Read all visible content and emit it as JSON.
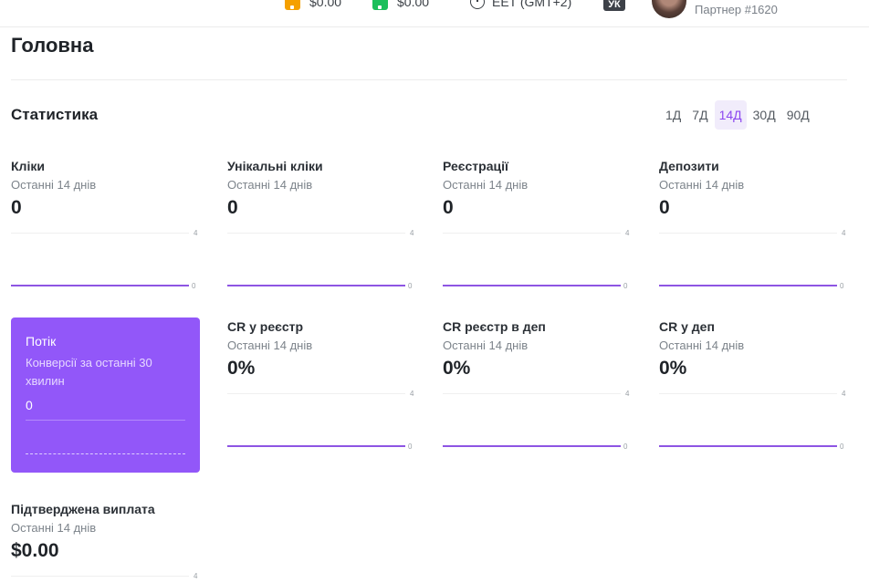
{
  "topbar": {
    "balance_1": "$0.00",
    "balance_2": "$0.00",
    "timezone": "EET (GMT+2)",
    "language": "УК",
    "partner": "Партнер #1620"
  },
  "page": {
    "title": "Головна"
  },
  "stats": {
    "title": "Статистика",
    "periods": [
      "1Д",
      "7Д",
      "14Д",
      "30Д",
      "90Д"
    ],
    "active_period": "14Д",
    "cards": [
      {
        "title": "Кліки",
        "subtitle": "Останні 14 днів",
        "value": "0",
        "axis_max": "4",
        "axis_min": "0"
      },
      {
        "title": "Унікальні кліки",
        "subtitle": "Останні 14 днів",
        "value": "0",
        "axis_max": "4",
        "axis_min": "0"
      },
      {
        "title": "Реєстрації",
        "subtitle": "Останні 14 днів",
        "value": "0",
        "axis_max": "4",
        "axis_min": "0"
      },
      {
        "title": "Депозити",
        "subtitle": "Останні 14 днів",
        "value": "0",
        "axis_max": "4",
        "axis_min": "0"
      },
      {
        "title": "CR у реєстр",
        "subtitle": "Останні 14 днів",
        "value": "0%",
        "axis_max": "4",
        "axis_min": "0"
      },
      {
        "title": "CR реєстр в деп",
        "subtitle": "Останні 14 днів",
        "value": "0%",
        "axis_max": "4",
        "axis_min": "0"
      },
      {
        "title": "CR у деп",
        "subtitle": "Останні 14 днів",
        "value": "0%",
        "axis_max": "4",
        "axis_min": "0"
      },
      {
        "title": "Підтверджена виплата",
        "subtitle": "Останні 14 днів",
        "value": "$0.00",
        "axis_max": "4",
        "axis_min": "0"
      }
    ],
    "flow": {
      "title": "Потік",
      "subtitle": "Конверсії за останні 30 хвилин",
      "value": "0"
    }
  },
  "colors": {
    "accent": "#9257f9",
    "line": "#8e55e3",
    "wallet_1": "#f5a000",
    "wallet_2": "#1bbf5b"
  }
}
